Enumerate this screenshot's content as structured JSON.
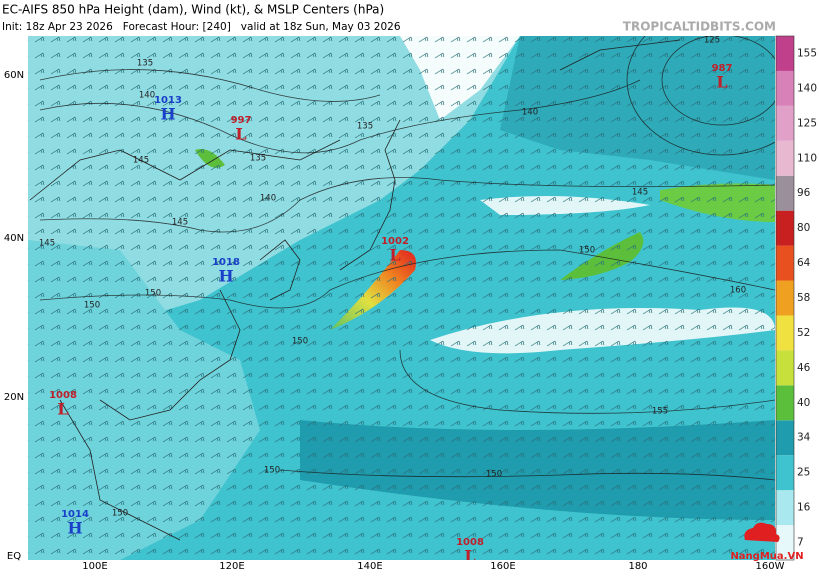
{
  "header": {
    "title": "EC-AIFS 850 hPa Height (dam), Wind (kt), & MSLP Centers (hPa)",
    "subtitle": "Init: 18z Apr 23 2026   Forecast Hour: [240]   valid at 18z Sun, May 03 2026",
    "site": "TROPICALTIDBITS.COM"
  },
  "lat_labels": [
    "60N",
    "40N",
    "20N",
    "EQ"
  ],
  "lon_labels": [
    "100E",
    "120E",
    "140E",
    "160E",
    "180",
    "160W"
  ],
  "centers": [
    {
      "value": 1013,
      "letter": "H"
    },
    {
      "value": 997,
      "letter": "L"
    },
    {
      "value": 1018,
      "letter": "H"
    },
    {
      "value": 1008,
      "letter": "L"
    },
    {
      "value": 1014,
      "letter": "H"
    },
    {
      "value": 1002,
      "letter": "L"
    },
    {
      "value": 987,
      "letter": "L"
    },
    {
      "value": 1008,
      "letter": "L"
    }
  ],
  "contour_labels": [
    125,
    135,
    140,
    145,
    145,
    145,
    150,
    150,
    140,
    135,
    135,
    140,
    145,
    150,
    160,
    155,
    150,
    150,
    150,
    150
  ],
  "colorbar": {
    "ticks": [
      7,
      16,
      25,
      34,
      40,
      46,
      52,
      58,
      64,
      80,
      96,
      110,
      125,
      140,
      155
    ]
  },
  "watermark": "NangMua.VN"
}
